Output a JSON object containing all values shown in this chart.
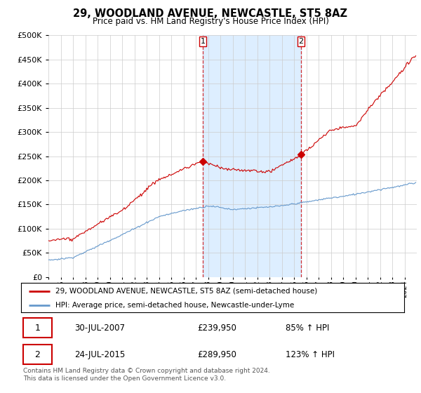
{
  "title": "29, WOODLAND AVENUE, NEWCASTLE, ST5 8AZ",
  "subtitle": "Price paid vs. HM Land Registry's House Price Index (HPI)",
  "line1_label": "29, WOODLAND AVENUE, NEWCASTLE, ST5 8AZ (semi-detached house)",
  "line2_label": "HPI: Average price, semi-detached house, Newcastle-under-Lyme",
  "line1_color": "#cc0000",
  "line2_color": "#6699cc",
  "purchase1_price": 239950,
  "purchase1_pct": "85% ↑ HPI",
  "purchase1_display": "30-JUL-2007",
  "purchase1_year": 2007.58,
  "purchase2_price": 289950,
  "purchase2_pct": "123% ↑ HPI",
  "purchase2_display": "24-JUL-2015",
  "purchase2_year": 2015.56,
  "ylim": [
    0,
    500000
  ],
  "yticks": [
    0,
    50000,
    100000,
    150000,
    200000,
    250000,
    300000,
    350000,
    400000,
    450000,
    500000
  ],
  "xlim_start": 1995,
  "xlim_end": 2025,
  "background_color": "#ffffff",
  "highlight_color": "#ddeeff",
  "vline_color": "#cc0000",
  "grid_color": "#cccccc",
  "footer": "Contains HM Land Registry data © Crown copyright and database right 2024.\nThis data is licensed under the Open Government Licence v3.0."
}
